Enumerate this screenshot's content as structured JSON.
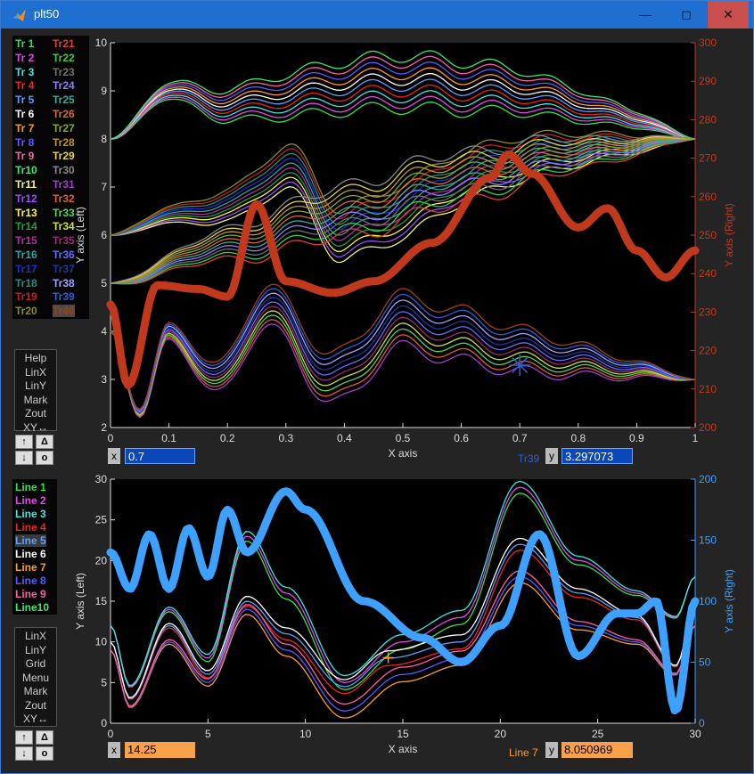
{
  "window": {
    "title": "plt50",
    "minimize": "—",
    "maximize": "◻",
    "close": "✕"
  },
  "top": {
    "legend": [
      {
        "label": "Tr 1",
        "color": "#34e34c"
      },
      {
        "label": "Tr 2",
        "color": "#e547e8"
      },
      {
        "label": "Tr 3",
        "color": "#3fe6e6"
      },
      {
        "label": "Tr 4",
        "color": "#ee2323"
      },
      {
        "label": "Tr 5",
        "color": "#5aa0ff"
      },
      {
        "label": "Tr 6",
        "color": "#ffffff"
      },
      {
        "label": "Tr 7",
        "color": "#ff9a30"
      },
      {
        "label": "Tr 8",
        "color": "#5a5aff"
      },
      {
        "label": "Tr 9",
        "color": "#ff5fa8"
      },
      {
        "label": "Tr10",
        "color": "#3de86d"
      },
      {
        "label": "Tr11",
        "color": "#f2f27a"
      },
      {
        "label": "Tr12",
        "color": "#9b4bff"
      },
      {
        "label": "Tr13",
        "color": "#f7f34a"
      },
      {
        "label": "Tr14",
        "color": "#1f9e3a"
      },
      {
        "label": "Tr15",
        "color": "#a9329c"
      },
      {
        "label": "Tr16",
        "color": "#2aa4a4"
      },
      {
        "label": "Tr17",
        "color": "#1733c8"
      },
      {
        "label": "Tr18",
        "color": "#2b8a79"
      },
      {
        "label": "Tr19",
        "color": "#c42020"
      },
      {
        "label": "Tr20",
        "color": "#8c8c27"
      },
      {
        "label": "Tr21",
        "color": "#e03c3c"
      },
      {
        "label": "Tr22",
        "color": "#3ec94a"
      },
      {
        "label": "Tr23",
        "color": "#707070"
      },
      {
        "label": "Tr24",
        "color": "#8f7bff"
      },
      {
        "label": "Tr25",
        "color": "#3aaa9a"
      },
      {
        "label": "Tr26",
        "color": "#d26a3a"
      },
      {
        "label": "Tr27",
        "color": "#7fa83a"
      },
      {
        "label": "Tr28",
        "color": "#b8962e"
      },
      {
        "label": "Tr29",
        "color": "#e4d33a"
      },
      {
        "label": "Tr30",
        "color": "#888888"
      },
      {
        "label": "Tr31",
        "color": "#a33ccf"
      },
      {
        "label": "Tr32",
        "color": "#e05a3a"
      },
      {
        "label": "Tr33",
        "color": "#52d35a"
      },
      {
        "label": "Tr34",
        "color": "#c9e23a"
      },
      {
        "label": "Tr35",
        "color": "#9b2c6e"
      },
      {
        "label": "Tr36",
        "color": "#6a6aff"
      },
      {
        "label": "Tr37",
        "color": "#1e3a9a"
      },
      {
        "label": "Tr38",
        "color": "#a0a0ff"
      },
      {
        "label": "Tr39",
        "color": "#2a5fd8"
      },
      {
        "label": "Tr40",
        "color": "#a0401a"
      }
    ],
    "menu": [
      "Help",
      "LinX",
      "LinY",
      "Mark",
      "Zout",
      "XY↔"
    ],
    "buttons": [
      "↑",
      "Δ",
      "↓",
      "o"
    ],
    "x_label": "x",
    "x_value": "0.7",
    "y_label": "y",
    "y_value": "3.297073",
    "trace_name": "Tr39",
    "trace_color": "#2a5fd8"
  },
  "bottom": {
    "legend": [
      {
        "label": "Line 1",
        "color": "#34e34c"
      },
      {
        "label": "Line 2",
        "color": "#e547e8"
      },
      {
        "label": "Line 3",
        "color": "#3fe6e6"
      },
      {
        "label": "Line 4",
        "color": "#ee2323"
      },
      {
        "label": "Line 5",
        "color": "#5aa0ff"
      },
      {
        "label": "Line 6",
        "color": "#ffffff"
      },
      {
        "label": "Line 7",
        "color": "#ff9a30"
      },
      {
        "label": "Line 8",
        "color": "#5a5aff"
      },
      {
        "label": "Line 9",
        "color": "#ff5fa8"
      },
      {
        "label": "Line10",
        "color": "#3de86d"
      }
    ],
    "menu": [
      "LinX",
      "LinY",
      "Grid",
      "Menu",
      "Mark",
      "Zout",
      "XY↔"
    ],
    "buttons": [
      "↑",
      "Δ",
      "↓",
      "o"
    ],
    "x_label": "x",
    "x_value": "14.25",
    "y_label": "y",
    "y_value": "8.050969",
    "trace_name": "Line 7",
    "trace_color": "#ff9a30"
  },
  "chart_data": [
    {
      "type": "line",
      "xlabel": "X axis",
      "ylabel": "Y axis (Left)",
      "y2label": "Y axis (Right)",
      "xlim": [
        0,
        1
      ],
      "ylim": [
        2,
        10
      ],
      "y2lim": [
        200,
        300
      ],
      "xticks": [
        "0",
        "0.1",
        "0.2",
        "0.3",
        "0.4",
        "0.5",
        "0.6",
        "0.7",
        "0.8",
        "0.9",
        "1"
      ],
      "yticks": [
        "2",
        "3",
        "4",
        "5",
        "6",
        "7",
        "8",
        "9",
        "10"
      ],
      "y2ticks": [
        "200",
        "210",
        "220",
        "230",
        "240",
        "250",
        "260",
        "270",
        "280",
        "290",
        "300"
      ],
      "grid": false,
      "series_count": 40,
      "series": [
        {
          "name": "Tr 1",
          "description": "upper oscillating bundle from 8 converging to 8",
          "x": [
            0,
            0.1,
            0.2,
            0.3,
            0.4,
            0.5,
            0.6,
            0.7,
            0.8,
            0.9,
            1
          ],
          "values": [
            8,
            9.0,
            8.7,
            8.9,
            9.1,
            9.2,
            9.1,
            9.0,
            8.7,
            8.4,
            8
          ]
        },
        {
          "name": "Tr11",
          "description": "middle bundle from 6 rising to 8",
          "x": [
            0,
            0.1,
            0.2,
            0.3,
            0.4,
            0.5,
            0.6,
            0.7,
            0.8,
            0.9,
            1
          ],
          "values": [
            6,
            6.4,
            6.6,
            7.4,
            6.0,
            6.5,
            7.2,
            7.6,
            7.8,
            7.9,
            8
          ]
        },
        {
          "name": "Tr21",
          "description": "fan from 5 rising to 8",
          "x": [
            0,
            0.2,
            0.4,
            0.6,
            0.8,
            1
          ],
          "values": [
            5,
            5.8,
            6.5,
            7.2,
            7.7,
            8
          ]
        },
        {
          "name": "Tr31",
          "description": "lower oscillating bundle from 4 descending to 3",
          "x": [
            0,
            0.05,
            0.1,
            0.18,
            0.27,
            0.38,
            0.5,
            0.6,
            0.7,
            0.8,
            0.9,
            1
          ],
          "values": [
            4,
            2.3,
            4.0,
            3.0,
            4.5,
            3.0,
            4.2,
            3.9,
            3.6,
            3.4,
            3.2,
            3
          ]
        },
        {
          "name": "Tr40",
          "axis": "right",
          "description": "thick right-axis trace",
          "x": [
            0,
            0.03,
            0.08,
            0.15,
            0.2,
            0.25,
            0.3,
            0.38,
            0.45,
            0.55,
            0.65,
            0.68,
            0.72,
            0.8,
            0.85,
            0.9,
            0.95,
            1
          ],
          "values": [
            232,
            211,
            237,
            236,
            234,
            258,
            238,
            235,
            238,
            248,
            265,
            271,
            266,
            252,
            257,
            246,
            239,
            246
          ]
        }
      ],
      "cursor": {
        "x": 0.7,
        "y": 3.297073
      }
    },
    {
      "type": "line",
      "xlabel": "X axis",
      "ylabel": "Y axis (Left)",
      "y2label": "Y axis (Right)",
      "xlim": [
        0,
        30
      ],
      "ylim": [
        0,
        30
      ],
      "y2lim": [
        0,
        200
      ],
      "xticks": [
        "0",
        "5",
        "10",
        "15",
        "20",
        "25",
        "30"
      ],
      "yticks": [
        "0",
        "5",
        "10",
        "15",
        "20",
        "25",
        "30"
      ],
      "y2ticks": [
        "0",
        "50",
        "100",
        "150",
        "200"
      ],
      "grid": false,
      "series_count": 10,
      "series": [
        {
          "name": "Line 1",
          "x": [
            0,
            1,
            3,
            5,
            7,
            9,
            12,
            15,
            18,
            21,
            24,
            27,
            29,
            30
          ],
          "values": [
            12,
            4.5,
            14,
            8,
            23,
            16,
            5,
            10,
            13,
            29,
            20,
            16,
            13,
            18
          ]
        },
        {
          "name": "Line 7",
          "x": [
            0,
            1,
            3,
            5,
            7,
            9,
            12,
            14.25,
            18,
            21,
            24,
            27,
            29,
            30
          ],
          "values": [
            10,
            3,
            12,
            6,
            15,
            11,
            4.5,
            8,
            10,
            22,
            16,
            13,
            7,
            14
          ]
        },
        {
          "name": "Line10",
          "x": [
            0,
            1,
            3,
            5,
            7,
            9,
            12,
            15,
            18,
            21,
            24,
            27,
            29,
            30
          ],
          "values": [
            9,
            2,
            10,
            5,
            14,
            9,
            1.5,
            6,
            8,
            18,
            12,
            10,
            6,
            12
          ]
        },
        {
          "name": "Line 5",
          "axis": "right",
          "description": "thick right-axis trace",
          "x": [
            0,
            1,
            2,
            3,
            4,
            5,
            6,
            7,
            9,
            10,
            13,
            16,
            18,
            20,
            22,
            24,
            26,
            27,
            28,
            29,
            30
          ],
          "values": [
            140,
            110,
            155,
            110,
            160,
            120,
            175,
            140,
            190,
            175,
            100,
            70,
            50,
            80,
            155,
            55,
            90,
            90,
            100,
            10,
            100
          ]
        }
      ],
      "cursor": {
        "x": 14.25,
        "y": 8.050969
      }
    }
  ]
}
